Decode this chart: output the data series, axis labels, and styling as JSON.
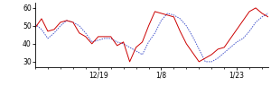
{
  "red_y": [
    49,
    54,
    47,
    48,
    52,
    53,
    52,
    46,
    44,
    40,
    44,
    44,
    44,
    39,
    41,
    30,
    38,
    41,
    50,
    58,
    57,
    56,
    55,
    47,
    40,
    35,
    30,
    32,
    34,
    37,
    38,
    43,
    48,
    53,
    58,
    60,
    57,
    55
  ],
  "blue_y": [
    51,
    48,
    43,
    46,
    50,
    53,
    52,
    50,
    46,
    41,
    42,
    43,
    43,
    41,
    40,
    38,
    36,
    34,
    41,
    46,
    53,
    57,
    56,
    54,
    50,
    44,
    37,
    30,
    30,
    32,
    35,
    38,
    41,
    43,
    47,
    52,
    55,
    57
  ],
  "xtick_positions": [
    10,
    20,
    32
  ],
  "xtick_labels": [
    "12/19",
    "1/8",
    "1/23"
  ],
  "ytick_positions": [
    30,
    40,
    50,
    60
  ],
  "ytick_labels": [
    "30",
    "40",
    "50",
    "60"
  ],
  "red_color": "#cc0000",
  "blue_color": "#4455cc",
  "bg_color": "#ffffff",
  "ylim": [
    27,
    63
  ],
  "xlim": [
    0,
    37
  ]
}
